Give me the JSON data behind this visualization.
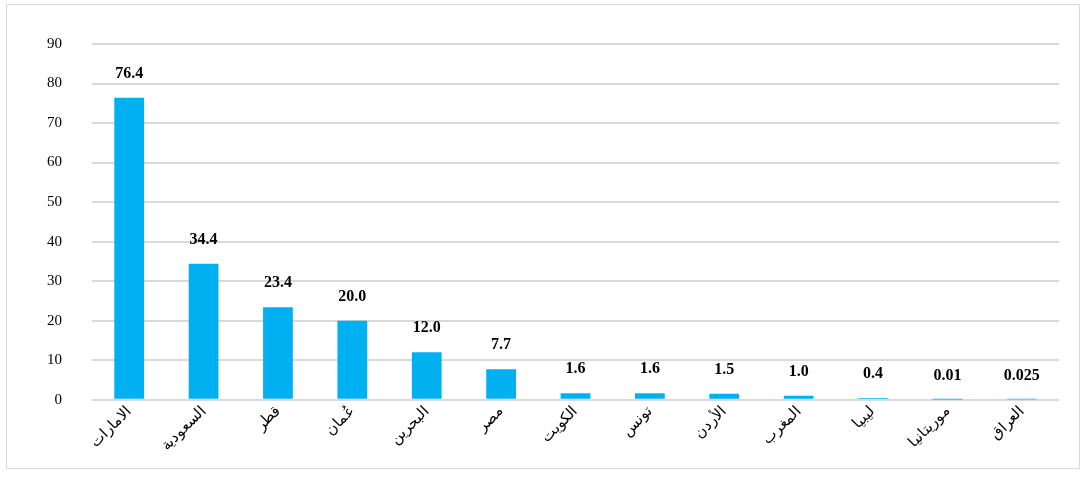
{
  "chart_data": {
    "type": "bar",
    "categories": [
      "الامارات",
      "السعودية",
      "قطر",
      "عُمان",
      "البحرين",
      "مصر",
      "الكويت",
      "تونس",
      "الأردن",
      "المغرب",
      "ليبيا",
      "موريتانيا",
      "العراق"
    ],
    "values": [
      76.4,
      34.4,
      23.4,
      20.0,
      12.0,
      7.7,
      1.6,
      1.6,
      1.5,
      1.0,
      0.4,
      0.01,
      0.025
    ],
    "value_labels": [
      "76.4",
      "34.4",
      "23.4",
      "20.0",
      "12.0",
      "7.7",
      "1.6",
      "1.6",
      "1.5",
      "1.0",
      "0.4",
      "0.01",
      "0.025"
    ],
    "color": "#00b0f0",
    "ylim": [
      0,
      90
    ],
    "yticks": [
      0,
      10,
      20,
      30,
      40,
      50,
      60,
      70,
      80,
      90
    ],
    "grid": "y",
    "legend": false
  }
}
